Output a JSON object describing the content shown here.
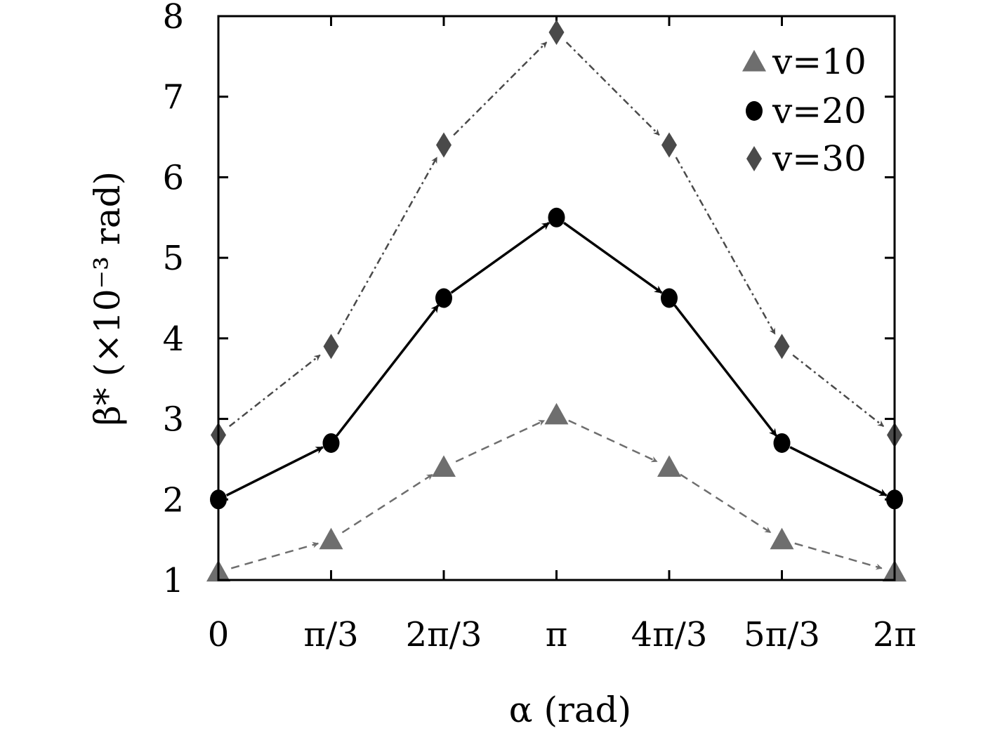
{
  "chart_data": {
    "type": "line",
    "x_tick_labels": [
      "0",
      "π/3",
      "2π/3",
      "π",
      "4π/3",
      "5π/3",
      "2π"
    ],
    "x": [
      0,
      1.0472,
      2.0944,
      3.1416,
      4.1888,
      5.236,
      6.2832
    ],
    "y_tick_labels": [
      "1",
      "2",
      "3",
      "4",
      "5",
      "6",
      "7",
      "8"
    ],
    "xlim": [
      0,
      6.2832
    ],
    "ylim": [
      1,
      8
    ],
    "xlabel": "α (rad)",
    "ylabel": "β* (×10⁻³ rad)",
    "legend_position": "top-right",
    "grid": false,
    "series": [
      {
        "name": "v=10",
        "marker": "triangle",
        "line_style": "dashed",
        "color": "#6e6e6e",
        "values": [
          1.1,
          1.5,
          2.4,
          3.05,
          2.4,
          1.5,
          1.1
        ]
      },
      {
        "name": "v=20",
        "marker": "circle",
        "line_style": "solid",
        "color": "#000000",
        "values": [
          2.0,
          2.7,
          4.5,
          5.5,
          4.5,
          2.7,
          2.0
        ]
      },
      {
        "name": "v=30",
        "marker": "diamond",
        "line_style": "dash-dot",
        "color": "#4a4a4a",
        "values": [
          2.8,
          3.9,
          6.4,
          7.8,
          6.4,
          3.9,
          2.8
        ]
      }
    ]
  }
}
